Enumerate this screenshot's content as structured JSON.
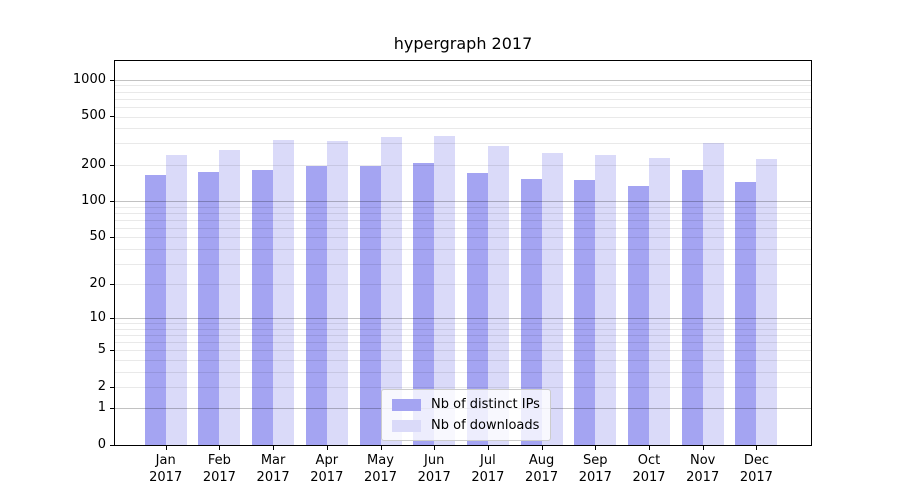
{
  "chart_data": {
    "type": "bar",
    "title": "hypergraph 2017",
    "categories": [
      "Jan",
      "Feb",
      "Mar",
      "Apr",
      "May",
      "Jun",
      "Jul",
      "Aug",
      "Sep",
      "Oct",
      "Nov",
      "Dec"
    ],
    "category_year": "2017",
    "series": [
      {
        "name": "Nb of distinct IPs",
        "color": "#a4a4f2",
        "values": [
          166,
          173,
          180,
          197,
          197,
          207,
          170,
          151,
          150,
          133,
          180,
          143
        ]
      },
      {
        "name": "Nb of downloads",
        "color": "#dadaf9",
        "values": [
          242,
          266,
          320,
          315,
          340,
          347,
          283,
          248,
          242,
          226,
          300,
          222
        ]
      }
    ],
    "y_scale": "log10(1+value)",
    "y_ticks": [
      1000,
      500,
      200,
      100,
      50,
      20,
      10,
      5,
      2,
      1,
      0
    ],
    "ylim": [
      0,
      1430
    ],
    "grid": {
      "major": [
        1,
        10,
        100,
        1000
      ],
      "minor_decades": [
        1,
        10,
        100
      ],
      "orientation": "horizontal"
    },
    "legend": {
      "position": "lower center"
    }
  }
}
